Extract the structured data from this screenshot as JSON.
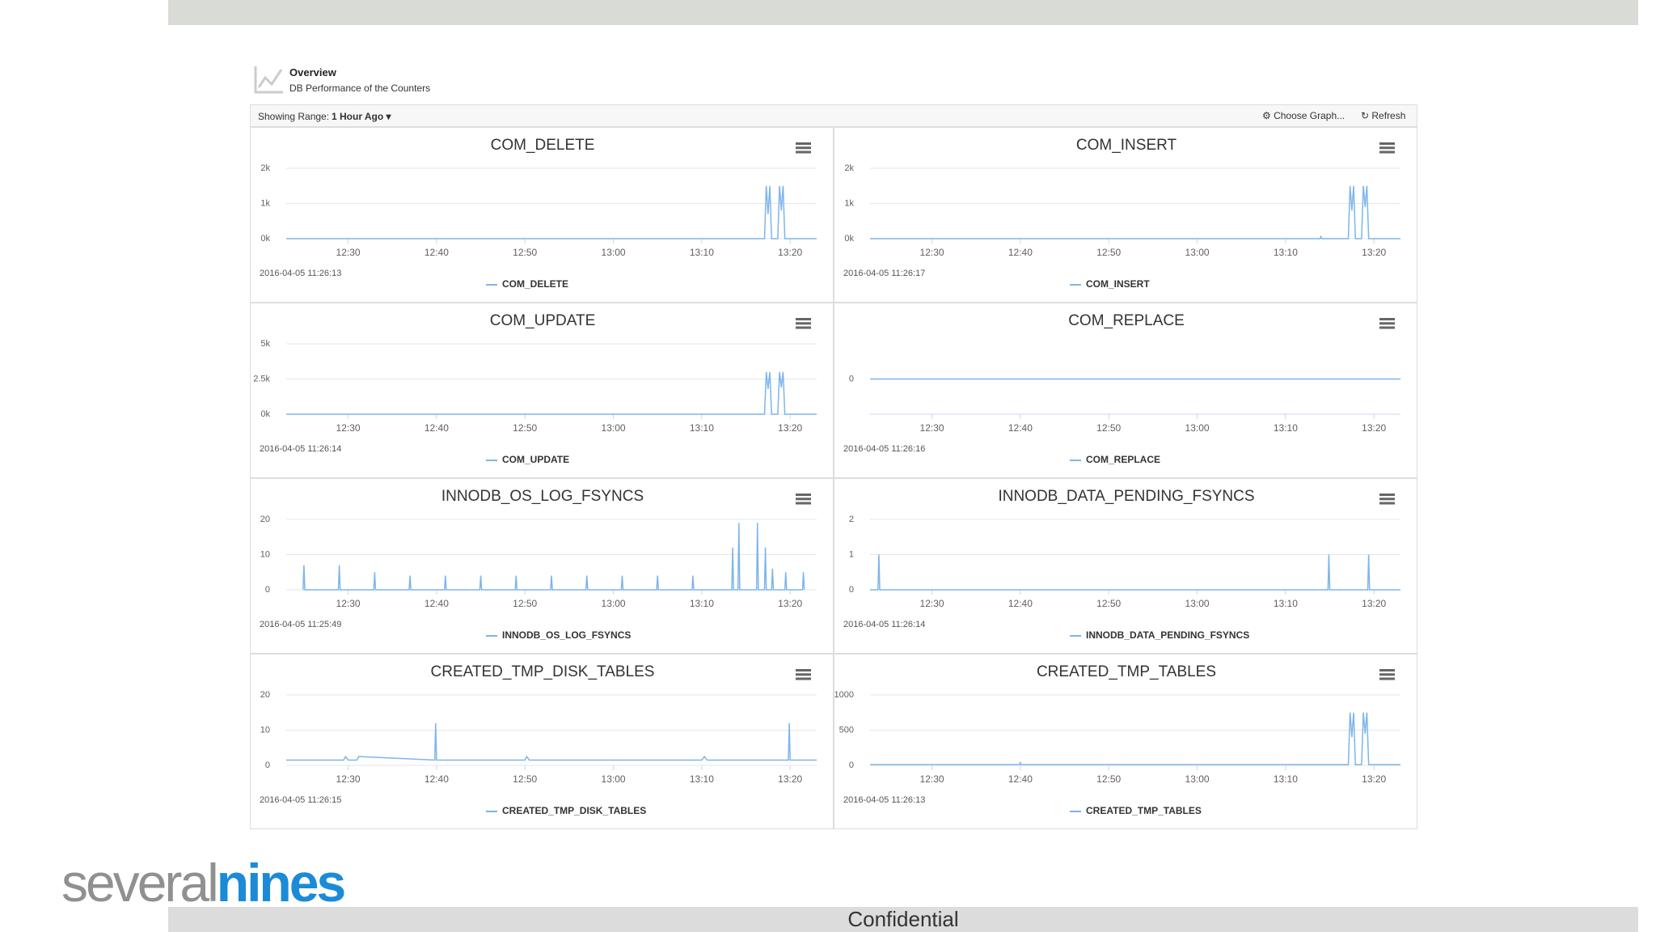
{
  "header": {
    "title": "Overview",
    "subtitle": "DB Performance of the Counters"
  },
  "toolbar": {
    "range_label": "Showing Range:",
    "range_value": "1 Hour Ago",
    "choose": "Choose Graph...",
    "refresh": "Refresh"
  },
  "brand": {
    "part1": "several",
    "part2": "nines"
  },
  "footer": "Confidential",
  "chart_data": [
    {
      "type": "line",
      "title": "COM_DELETE",
      "timestamp": "2016-04-05 11:26:13",
      "x": [
        743,
        797.1,
        797.3,
        797.5,
        797.7,
        797.9,
        798.6,
        798.8,
        799,
        799.2,
        799.4,
        803
      ],
      "series": [
        {
          "name": "COM_DELETE",
          "color": "#7cb5ec",
          "values": [
            0,
            0,
            1500,
            700,
            1500,
            0,
            0,
            1500,
            800,
            1500,
            0,
            0
          ]
        }
      ],
      "xlim": [
        743,
        803
      ],
      "xticks": [
        {
          "value": 750,
          "label": "12:30"
        },
        {
          "value": 760,
          "label": "12:40"
        },
        {
          "value": 770,
          "label": "12:50"
        },
        {
          "value": 780,
          "label": "13:00"
        },
        {
          "value": 790,
          "label": "13:10"
        },
        {
          "value": 800,
          "label": "13:20"
        }
      ],
      "ylim": [
        0,
        2000
      ],
      "yticks": [
        {
          "value": 0,
          "label": "0k"
        },
        {
          "value": 1000,
          "label": "1k"
        },
        {
          "value": 2000,
          "label": "2k"
        }
      ]
    },
    {
      "type": "line",
      "title": "COM_INSERT",
      "timestamp": "2016-04-05 11:26:17",
      "x": [
        743,
        793.9,
        794,
        794.1,
        797.1,
        797.3,
        797.5,
        797.7,
        797.9,
        798.6,
        798.8,
        799,
        799.2,
        799.4,
        803
      ],
      "series": [
        {
          "name": "COM_INSERT",
          "color": "#7cb5ec",
          "values": [
            0,
            0,
            60,
            0,
            0,
            1500,
            800,
            1500,
            0,
            0,
            1500,
            900,
            1500,
            0,
            0
          ]
        }
      ],
      "xlim": [
        743,
        803
      ],
      "xticks": [
        {
          "value": 750,
          "label": "12:30"
        },
        {
          "value": 760,
          "label": "12:40"
        },
        {
          "value": 770,
          "label": "12:50"
        },
        {
          "value": 780,
          "label": "13:00"
        },
        {
          "value": 790,
          "label": "13:10"
        },
        {
          "value": 800,
          "label": "13:20"
        }
      ],
      "ylim": [
        0,
        2000
      ],
      "yticks": [
        {
          "value": 0,
          "label": "0k"
        },
        {
          "value": 1000,
          "label": "1k"
        },
        {
          "value": 2000,
          "label": "2k"
        }
      ]
    },
    {
      "type": "line",
      "title": "COM_UPDATE",
      "timestamp": "2016-04-05 11:26:14",
      "x": [
        743,
        797.1,
        797.3,
        797.5,
        797.7,
        797.9,
        798.6,
        798.8,
        799,
        799.2,
        799.4,
        803
      ],
      "series": [
        {
          "name": "COM_UPDATE",
          "color": "#7cb5ec",
          "values": [
            0,
            0,
            3000,
            1800,
            3000,
            0,
            0,
            3000,
            1900,
            3000,
            0,
            0
          ]
        }
      ],
      "xlim": [
        743,
        803
      ],
      "xticks": [
        {
          "value": 750,
          "label": "12:30"
        },
        {
          "value": 760,
          "label": "12:40"
        },
        {
          "value": 770,
          "label": "12:50"
        },
        {
          "value": 780,
          "label": "13:00"
        },
        {
          "value": 790,
          "label": "13:10"
        },
        {
          "value": 800,
          "label": "13:20"
        }
      ],
      "ylim": [
        0,
        5000
      ],
      "yticks": [
        {
          "value": 0,
          "label": "0k"
        },
        {
          "value": 2500,
          "label": "2.5k"
        },
        {
          "value": 5000,
          "label": "5k"
        }
      ]
    },
    {
      "type": "line",
      "title": "COM_REPLACE",
      "timestamp": "2016-04-05 11:26:16",
      "x": [
        743,
        803
      ],
      "series": [
        {
          "name": "COM_REPLACE",
          "color": "#7cb5ec",
          "values": [
            0,
            0
          ]
        }
      ],
      "xlim": [
        743,
        803
      ],
      "xticks": [
        {
          "value": 750,
          "label": "12:30"
        },
        {
          "value": 760,
          "label": "12:40"
        },
        {
          "value": 770,
          "label": "12:50"
        },
        {
          "value": 780,
          "label": "13:00"
        },
        {
          "value": 790,
          "label": "13:10"
        },
        {
          "value": 800,
          "label": "13:20"
        }
      ],
      "ylim": [
        -1,
        1
      ],
      "yticks": [
        0
      ]
    },
    {
      "type": "line",
      "title": "INNODB_OS_LOG_FSYNCS",
      "timestamp": "2016-04-05 11:25:49",
      "x": [
        744.9,
        745,
        745.1,
        748.9,
        749,
        749.1,
        752.9,
        753,
        753.1,
        756.9,
        757,
        757.1,
        760.9,
        761,
        761.1,
        764.9,
        765,
        765.1,
        768.9,
        769,
        769.1,
        772.9,
        773,
        773.1,
        776.9,
        777,
        777.1,
        780.9,
        781,
        781.1,
        784.9,
        785,
        785.1,
        788.9,
        789,
        789.1,
        793.4,
        793.5,
        793.6,
        794.1,
        794.2,
        794.3,
        796.2,
        796.3,
        796.4,
        797.1,
        797.2,
        797.3,
        797.9,
        798,
        798.1,
        799.4,
        799.5,
        799.6,
        801.4,
        801.5,
        801.6
      ],
      "series": [
        {
          "name": "INNODB_OS_LOG_FSYNCS",
          "color": "#7cb5ec",
          "values": [
            0,
            7,
            0,
            0,
            7,
            0,
            0,
            5,
            0,
            0,
            4,
            0,
            0,
            4,
            0,
            0,
            4,
            0,
            0,
            4,
            0,
            0,
            4,
            0,
            0,
            4,
            0,
            0,
            4,
            0,
            0,
            4,
            0,
            0,
            4,
            0,
            0,
            12,
            0,
            0,
            19,
            0,
            0,
            19,
            0,
            0,
            12,
            0,
            0,
            6,
            0,
            0,
            5,
            0,
            0,
            5,
            0
          ]
        }
      ],
      "xlim": [
        743,
        803
      ],
      "xticks": [
        {
          "value": 750,
          "label": "12:30"
        },
        {
          "value": 760,
          "label": "12:40"
        },
        {
          "value": 770,
          "label": "12:50"
        },
        {
          "value": 780,
          "label": "13:00"
        },
        {
          "value": 790,
          "label": "13:10"
        },
        {
          "value": 800,
          "label": "13:20"
        }
      ],
      "ylim": [
        0,
        20
      ],
      "yticks": [
        0,
        10,
        20
      ]
    },
    {
      "type": "line",
      "title": "INNODB_DATA_PENDING_FSYNCS",
      "timestamp": "2016-04-05 11:26:14",
      "x": [
        743,
        743.9,
        744,
        744.1,
        794.8,
        794.9,
        795,
        799.3,
        799.4,
        799.5,
        803
      ],
      "series": [
        {
          "name": "INNODB_DATA_PENDING_FSYNCS",
          "color": "#7cb5ec",
          "values": [
            0,
            0,
            1,
            0,
            0,
            1,
            0,
            0,
            1,
            0,
            0
          ]
        }
      ],
      "xlim": [
        743,
        803
      ],
      "xticks": [
        {
          "value": 750,
          "label": "12:30"
        },
        {
          "value": 760,
          "label": "12:40"
        },
        {
          "value": 770,
          "label": "12:50"
        },
        {
          "value": 780,
          "label": "13:00"
        },
        {
          "value": 790,
          "label": "13:10"
        },
        {
          "value": 800,
          "label": "13:20"
        }
      ],
      "ylim": [
        0,
        2
      ],
      "yticks": [
        0,
        1,
        2
      ]
    },
    {
      "type": "line",
      "title": "CREATED_TMP_DISK_TABLES",
      "timestamp": "2016-04-05 11:26:15",
      "x": [
        743,
        749.5,
        749.7,
        750,
        751,
        751.2,
        759.8,
        759.9,
        760,
        770,
        770.2,
        770.5,
        790,
        790.3,
        790.6,
        799.8,
        799.9,
        800,
        803
      ],
      "series": [
        {
          "name": "CREATED_TMP_DISK_TABLES",
          "color": "#7cb5ec",
          "values": [
            1.5,
            1.5,
            2.5,
            1.5,
            1.5,
            2.5,
            1.5,
            12,
            1.5,
            1.5,
            2.5,
            1.5,
            1.5,
            2.5,
            1.5,
            1.5,
            12,
            1.5,
            1.5
          ]
        }
      ],
      "xlim": [
        743,
        803
      ],
      "xticks": [
        {
          "value": 750,
          "label": "12:30"
        },
        {
          "value": 760,
          "label": "12:40"
        },
        {
          "value": 770,
          "label": "12:50"
        },
        {
          "value": 780,
          "label": "13:00"
        },
        {
          "value": 790,
          "label": "13:10"
        },
        {
          "value": 800,
          "label": "13:20"
        }
      ],
      "ylim": [
        0,
        20
      ],
      "yticks": [
        0,
        10,
        20
      ]
    },
    {
      "type": "line",
      "title": "CREATED_TMP_TABLES",
      "timestamp": "2016-04-05 11:26:13",
      "x": [
        743,
        759.9,
        760,
        760.1,
        797.1,
        797.3,
        797.5,
        797.7,
        797.9,
        798.6,
        798.8,
        799,
        799.2,
        799.4,
        803
      ],
      "series": [
        {
          "name": "CREATED_TMP_TABLES",
          "color": "#7cb5ec",
          "values": [
            10,
            10,
            40,
            10,
            10,
            750,
            400,
            750,
            10,
            10,
            750,
            450,
            750,
            10,
            10
          ]
        }
      ],
      "xlim": [
        743,
        803
      ],
      "xticks": [
        {
          "value": 750,
          "label": "12:30"
        },
        {
          "value": 760,
          "label": "12:40"
        },
        {
          "value": 770,
          "label": "12:50"
        },
        {
          "value": 780,
          "label": "13:00"
        },
        {
          "value": 790,
          "label": "13:10"
        },
        {
          "value": 800,
          "label": "13:20"
        }
      ],
      "ylim": [
        0,
        1000
      ],
      "yticks": [
        0,
        500,
        1000
      ]
    }
  ]
}
